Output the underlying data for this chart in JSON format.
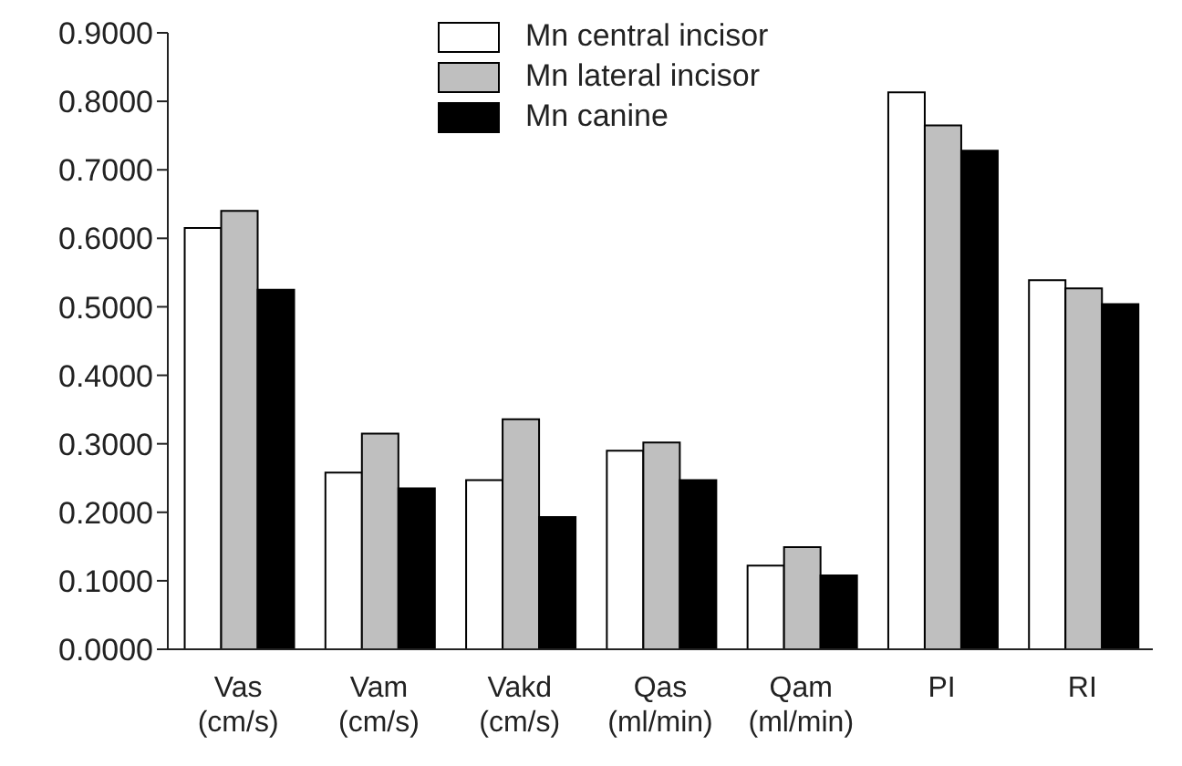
{
  "chart_data": {
    "type": "bar",
    "categories": [
      "Vas (cm/s)",
      "Vam (cm/s)",
      "Vakd (cm/s)",
      "Qas (ml/min)",
      "Qam (ml/min)",
      "PI",
      "RI"
    ],
    "series": [
      {
        "name": "Mn central incisor",
        "color": "#ffffff",
        "values": [
          0.615,
          0.258,
          0.247,
          0.29,
          0.122,
          0.813,
          0.539
        ]
      },
      {
        "name": "Mn lateral incisor",
        "color": "#bfbfbf",
        "values": [
          0.64,
          0.315,
          0.336,
          0.302,
          0.149,
          0.765,
          0.527
        ]
      },
      {
        "name": "Mn canine",
        "color": "#000000",
        "values": [
          0.525,
          0.235,
          0.193,
          0.247,
          0.108,
          0.728,
          0.504
        ]
      }
    ],
    "ylim": [
      0,
      0.9
    ],
    "yticks": [
      {
        "value": 0,
        "label": "0.0000"
      },
      {
        "value": 0.1,
        "label": "0.1000"
      },
      {
        "value": 0.2,
        "label": "0.2000"
      },
      {
        "value": 0.3,
        "label": "0.3000"
      },
      {
        "value": 0.4,
        "label": "0.4000"
      },
      {
        "value": 0.5,
        "label": "0.5000"
      },
      {
        "value": 0.6,
        "label": "0.6000"
      },
      {
        "value": 0.7,
        "label": "0.7000"
      },
      {
        "value": 0.8,
        "label": "0.8000"
      },
      {
        "value": 0.9,
        "label": "0.9000"
      }
    ],
    "legend": "top",
    "grid": false
  }
}
